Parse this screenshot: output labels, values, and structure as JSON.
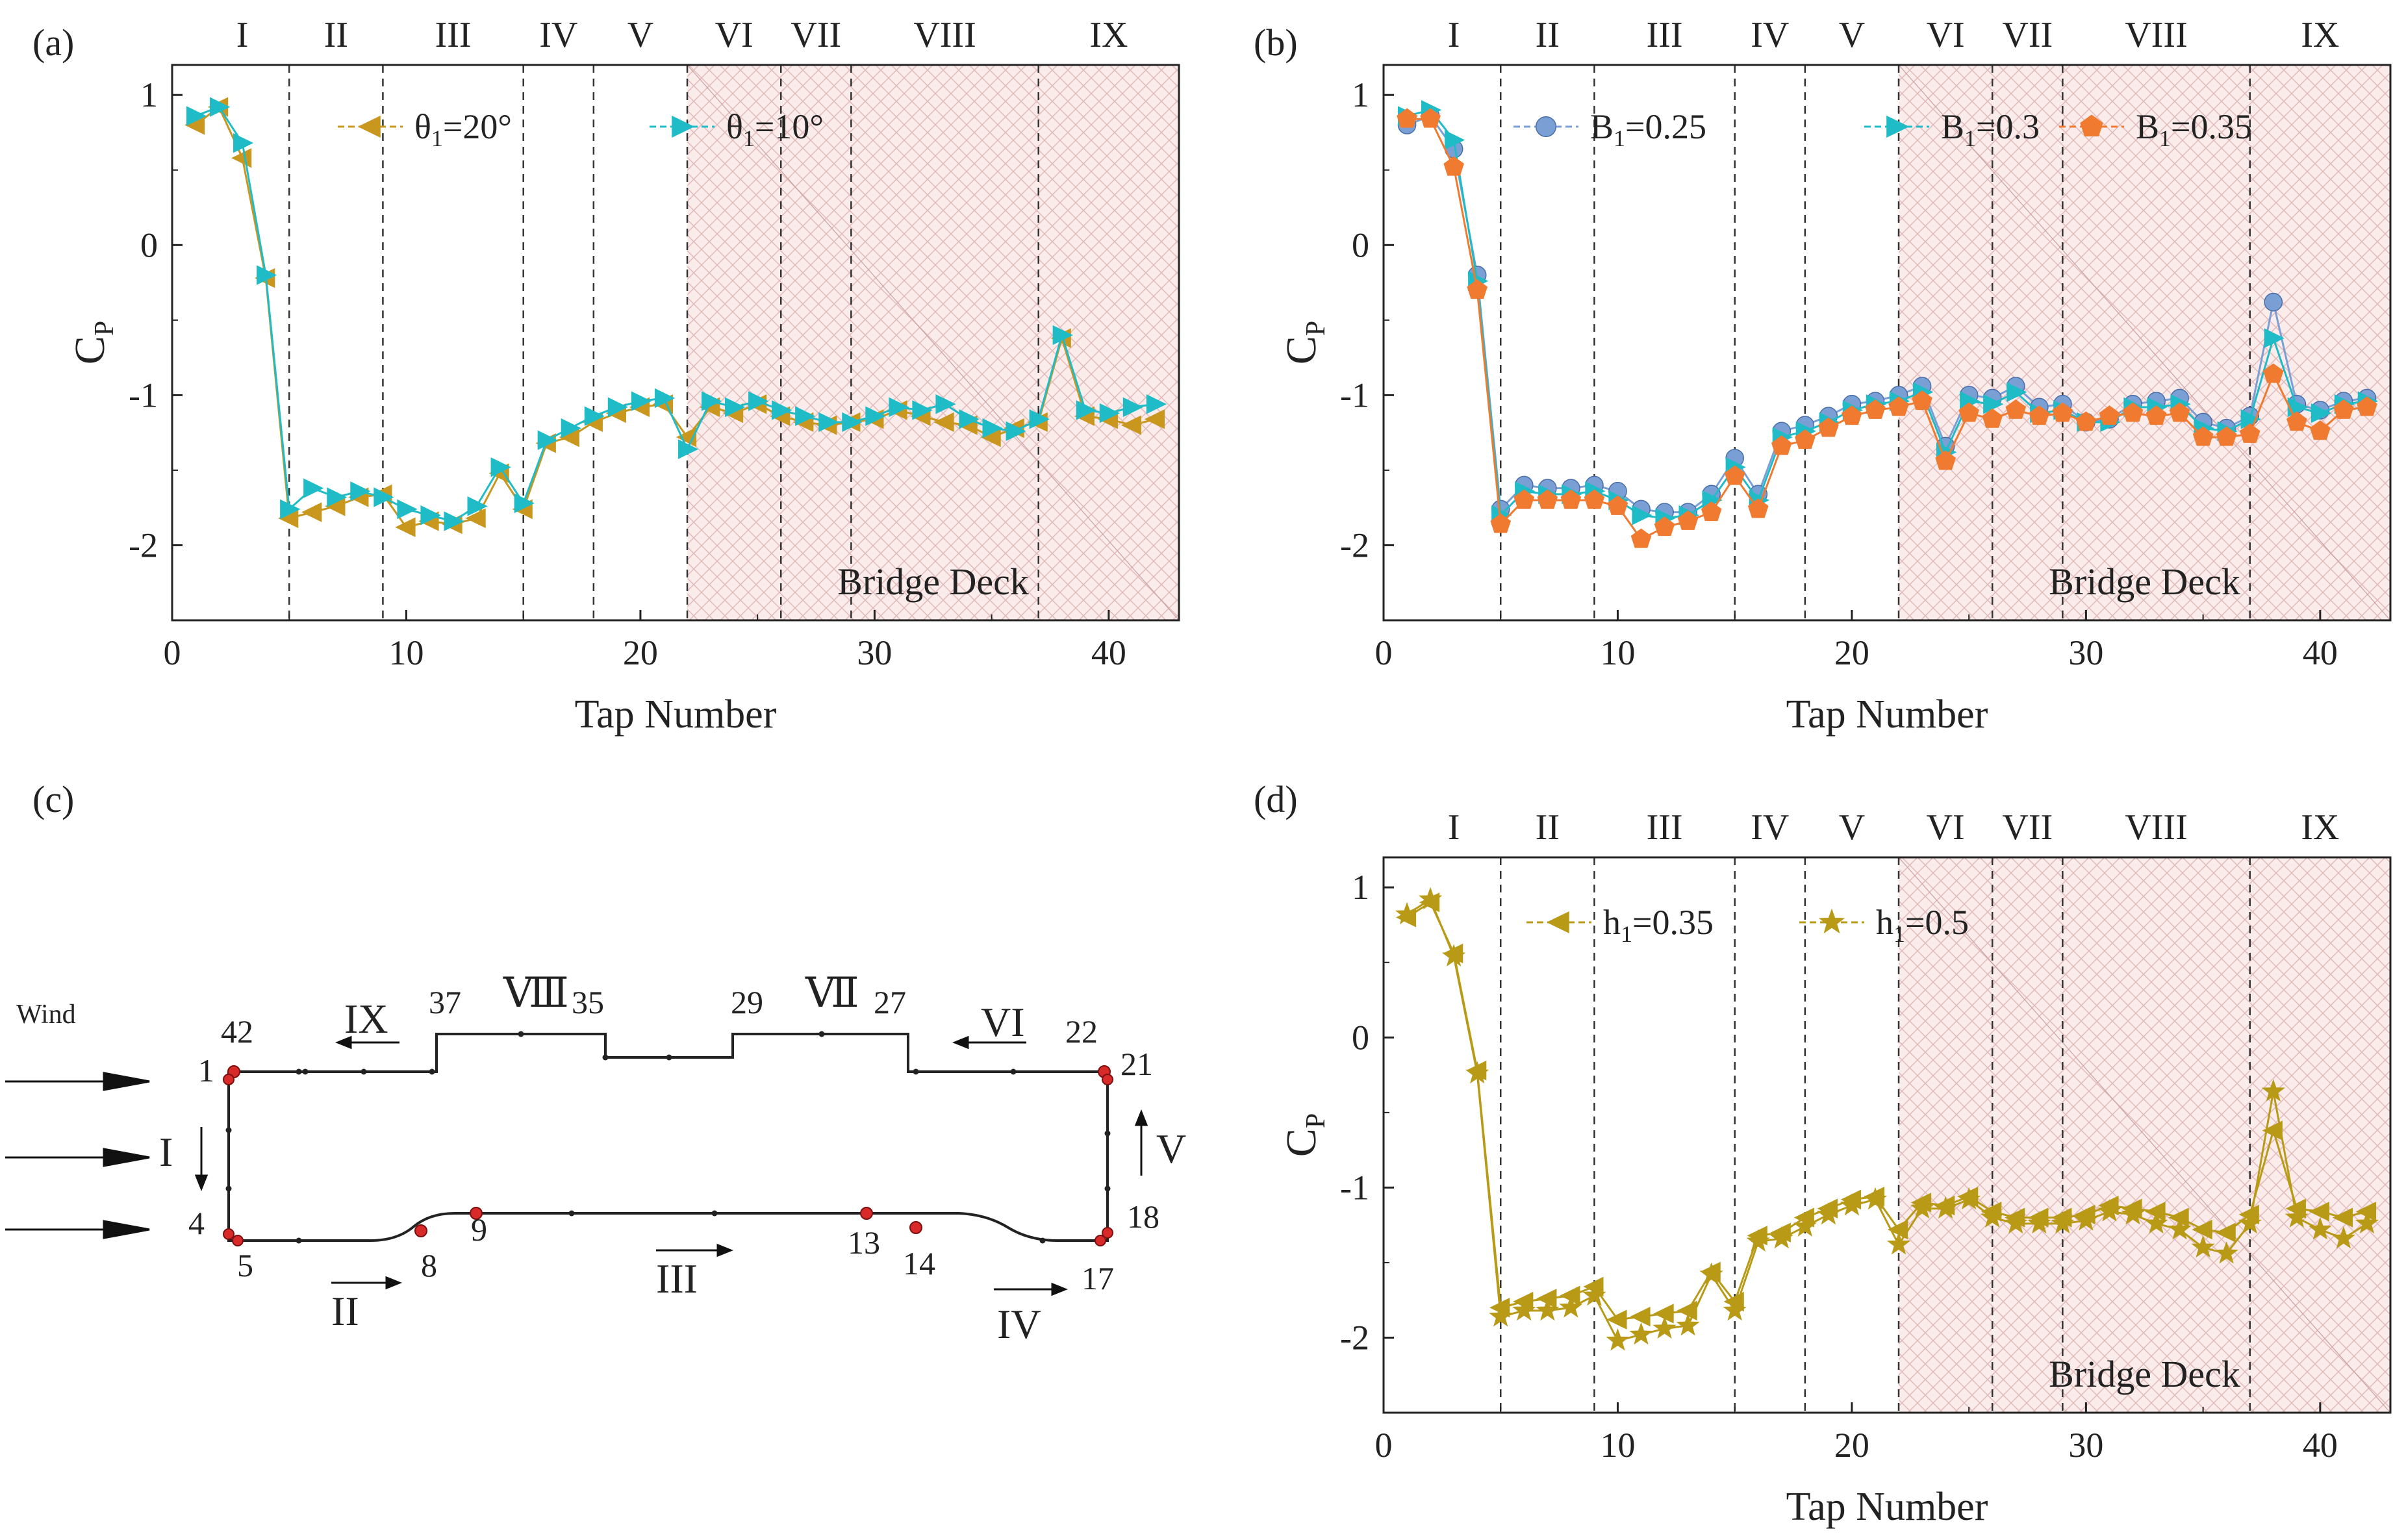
{
  "chart_data": [
    {
      "panel": "(a)",
      "type": "line",
      "xlabel": "Tap Number",
      "ylabel": "C",
      "ylabel_sub": "P",
      "xlim": [
        0,
        43
      ],
      "ylim": [
        -2.5,
        1.2
      ],
      "xticks": [
        "0",
        "10",
        "20",
        "30",
        "40"
      ],
      "yticks": [
        "1",
        "0",
        "-1",
        "-2"
      ],
      "regions": [
        "I",
        "II",
        "III",
        "IV",
        "V",
        "VI",
        "VII",
        "VIII",
        "IX"
      ],
      "shaded_label": "Bridge Deck",
      "series": [
        {
          "name": "θ",
          "sub": "1",
          "suffix": "=20°",
          "color": "#c9971e",
          "marker": "tri-left",
          "values": [
            0.8,
            0.92,
            0.58,
            -0.22,
            -1.82,
            -1.78,
            -1.74,
            -1.68,
            -1.66,
            -1.88,
            -1.84,
            -1.86,
            -1.82,
            -1.52,
            -1.76,
            -1.32,
            -1.28,
            -1.18,
            -1.12,
            -1.08,
            -1.06,
            -1.28,
            -1.08,
            -1.12,
            -1.06,
            -1.14,
            -1.18,
            -1.2,
            -1.18,
            -1.16,
            -1.1,
            -1.14,
            -1.18,
            -1.2,
            -1.28,
            -1.22,
            -1.18,
            -0.62,
            -1.14,
            -1.16,
            -1.2,
            -1.16
          ]
        },
        {
          "name": "θ",
          "sub": "1",
          "suffix": "=10°",
          "color": "#1fbcc7",
          "marker": "tri-right",
          "values": [
            0.86,
            0.92,
            0.68,
            -0.2,
            -1.76,
            -1.62,
            -1.68,
            -1.64,
            -1.68,
            -1.76,
            -1.8,
            -1.84,
            -1.74,
            -1.48,
            -1.72,
            -1.3,
            -1.22,
            -1.14,
            -1.08,
            -1.04,
            -1.02,
            -1.36,
            -1.04,
            -1.08,
            -1.04,
            -1.1,
            -1.14,
            -1.18,
            -1.18,
            -1.14,
            -1.08,
            -1.1,
            -1.06,
            -1.16,
            -1.22,
            -1.24,
            -1.16,
            -0.6,
            -1.1,
            -1.12,
            -1.08,
            -1.06
          ]
        }
      ]
    },
    {
      "panel": "(b)",
      "type": "line",
      "xlabel": "Tap Number",
      "ylabel": "C",
      "ylabel_sub": "P",
      "xlim": [
        0,
        43
      ],
      "ylim": [
        -2.5,
        1.2
      ],
      "xticks": [
        "0",
        "10",
        "20",
        "30",
        "40"
      ],
      "yticks": [
        "1",
        "0",
        "-1",
        "-2"
      ],
      "regions": [
        "I",
        "II",
        "III",
        "IV",
        "V",
        "VI",
        "VII",
        "VIII",
        "IX"
      ],
      "shaded_label": "Bridge Deck",
      "series": [
        {
          "name": "B",
          "sub": "1",
          "suffix": "=0.25",
          "color": "#7a9fd4",
          "marker": "circle",
          "values": [
            0.8,
            0.86,
            0.64,
            -0.2,
            -1.76,
            -1.6,
            -1.62,
            -1.62,
            -1.6,
            -1.64,
            -1.76,
            -1.78,
            -1.78,
            -1.66,
            -1.42,
            -1.66,
            -1.24,
            -1.2,
            -1.14,
            -1.06,
            -1.04,
            -1.0,
            -0.94,
            -1.34,
            -1.0,
            -1.02,
            -0.94,
            -1.08,
            -1.06,
            -1.18,
            -1.16,
            -1.06,
            -1.04,
            -1.02,
            -1.18,
            -1.22,
            -1.14,
            -0.38,
            -1.06,
            -1.1,
            -1.04,
            -1.02
          ]
        },
        {
          "name": "B",
          "sub": "1",
          "suffix": "=0.3",
          "color": "#1fbcc7",
          "marker": "tri-right",
          "values": [
            0.86,
            0.9,
            0.7,
            -0.24,
            -1.8,
            -1.64,
            -1.66,
            -1.66,
            -1.64,
            -1.7,
            -1.8,
            -1.82,
            -1.8,
            -1.7,
            -1.48,
            -1.7,
            -1.28,
            -1.24,
            -1.18,
            -1.1,
            -1.06,
            -1.04,
            -0.98,
            -1.38,
            -1.04,
            -1.06,
            -0.98,
            -1.12,
            -1.1,
            -1.18,
            -1.18,
            -1.08,
            -1.08,
            -1.06,
            -1.22,
            -1.24,
            -1.16,
            -0.62,
            -1.08,
            -1.12,
            -1.06,
            -1.04
          ]
        },
        {
          "name": "B",
          "sub": "1",
          "suffix": "=0.35",
          "color": "#f07a30",
          "marker": "pentagon",
          "values": [
            0.84,
            0.84,
            0.52,
            -0.3,
            -1.86,
            -1.7,
            -1.7,
            -1.7,
            -1.7,
            -1.74,
            -1.96,
            -1.88,
            -1.84,
            -1.78,
            -1.54,
            -1.76,
            -1.34,
            -1.3,
            -1.22,
            -1.14,
            -1.1,
            -1.08,
            -1.04,
            -1.44,
            -1.12,
            -1.16,
            -1.1,
            -1.14,
            -1.12,
            -1.18,
            -1.14,
            -1.12,
            -1.14,
            -1.12,
            -1.28,
            -1.28,
            -1.26,
            -0.86,
            -1.18,
            -1.24,
            -1.1,
            -1.08
          ]
        }
      ]
    },
    {
      "panel": "(d)",
      "type": "line",
      "xlabel": "Tap Number",
      "ylabel": "C",
      "ylabel_sub": "P",
      "xlim": [
        0,
        43
      ],
      "ylim": [
        -2.5,
        1.2
      ],
      "xticks": [
        "0",
        "10",
        "20",
        "30",
        "40"
      ],
      "yticks": [
        "1",
        "0",
        "-1",
        "-2"
      ],
      "regions": [
        "I",
        "II",
        "III",
        "IV",
        "V",
        "VI",
        "VII",
        "VIII",
        "IX"
      ],
      "shaded_label": "Bridge Deck",
      "series": [
        {
          "name": "h",
          "sub": "1",
          "suffix": "=0.35",
          "color": "#b89a16",
          "marker": "tri-left",
          "values": [
            0.8,
            0.9,
            0.56,
            -0.22,
            -1.8,
            -1.76,
            -1.74,
            -1.72,
            -1.66,
            -1.88,
            -1.86,
            -1.84,
            -1.82,
            -1.56,
            -1.76,
            -1.32,
            -1.3,
            -1.2,
            -1.14,
            -1.08,
            -1.06,
            -1.28,
            -1.1,
            -1.12,
            -1.06,
            -1.16,
            -1.2,
            -1.2,
            -1.2,
            -1.18,
            -1.12,
            -1.14,
            -1.16,
            -1.2,
            -1.28,
            -1.3,
            -1.18,
            -0.62,
            -1.14,
            -1.16,
            -1.2,
            -1.16
          ]
        },
        {
          "name": "h",
          "sub": "1",
          "suffix": "=0.5",
          "color": "#b89a16",
          "marker": "star",
          "values": [
            0.82,
            0.92,
            0.54,
            -0.24,
            -1.86,
            -1.82,
            -1.82,
            -1.8,
            -1.72,
            -2.02,
            -1.98,
            -1.94,
            -1.92,
            -1.58,
            -1.82,
            -1.36,
            -1.34,
            -1.26,
            -1.18,
            -1.12,
            -1.08,
            -1.38,
            -1.14,
            -1.14,
            -1.08,
            -1.2,
            -1.24,
            -1.24,
            -1.24,
            -1.22,
            -1.16,
            -1.18,
            -1.24,
            -1.28,
            -1.4,
            -1.44,
            -1.24,
            -0.36,
            -1.2,
            -1.28,
            -1.34,
            -1.24
          ]
        }
      ]
    }
  ],
  "panel_labels": {
    "a": "(a)",
    "b": "(b)",
    "c": "(c)",
    "d": "(d)"
  },
  "diagram": {
    "wind_label": "Wind",
    "tap_labels": {
      "t1": "1",
      "t4": "4",
      "t5": "5",
      "t8": "8",
      "t9": "9",
      "t13": "13",
      "t14": "14",
      "t17": "17",
      "t18": "18",
      "t21": "21",
      "t22": "22",
      "t27": "27",
      "t29": "29",
      "t35": "35",
      "t37": "37",
      "t42": "42"
    },
    "region_labels": {
      "I": "I",
      "II": "II",
      "III": "III",
      "IV": "IV",
      "V": "V",
      "VI": "VI",
      "VII": "Ⅶ",
      "VIII": "Ⅷ",
      "IX": "IX"
    }
  }
}
